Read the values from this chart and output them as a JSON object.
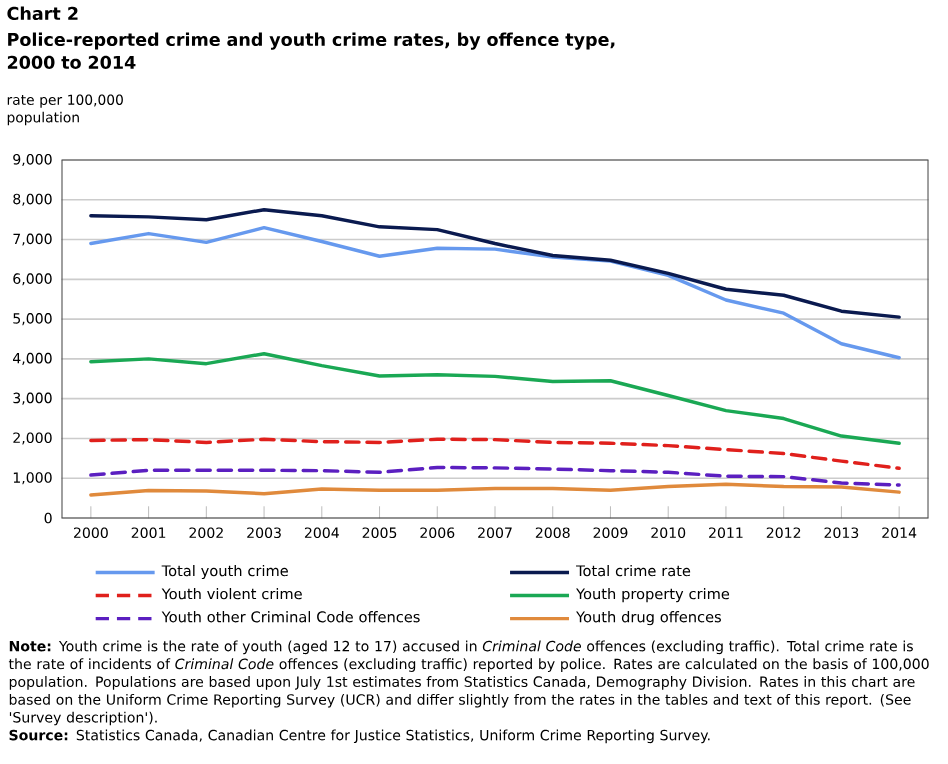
{
  "chart_data": {
    "type": "line",
    "title": "Police-reported  crime and youth crime rates, by offence type, 2000 to 2014",
    "ylabel": "rate per 100,000 population",
    "categories": [
      "2000",
      "2001",
      "2002",
      "2003",
      "2004",
      "2005",
      "2006",
      "2007",
      "2008",
      "2009",
      "2010",
      "2011",
      "2012",
      "2013",
      "2014"
    ],
    "series": [
      {
        "name": "Total youth crime",
        "color": "#6699ee",
        "line_style": "solid",
        "values": [
          6900,
          7150,
          6930,
          7300,
          6950,
          6580,
          6780,
          6760,
          6560,
          6460,
          6100,
          5480,
          5150,
          4380,
          4030
        ]
      },
      {
        "name": "Total crime rate",
        "color": "#0a1a4f",
        "line_style": "solid",
        "values": [
          7600,
          7570,
          7500,
          7750,
          7600,
          7320,
          7250,
          6900,
          6600,
          6480,
          6150,
          5750,
          5600,
          5200,
          5050
        ]
      },
      {
        "name": "Youth violent crime",
        "color": "#e0201c",
        "line_style": "dashed",
        "values": [
          1950,
          1970,
          1900,
          1980,
          1920,
          1900,
          1980,
          1970,
          1900,
          1880,
          1820,
          1720,
          1620,
          1430,
          1250
        ]
      },
      {
        "name": "Youth property crime",
        "color": "#1aa854",
        "line_style": "solid",
        "values": [
          3930,
          4000,
          3880,
          4130,
          3830,
          3570,
          3600,
          3560,
          3430,
          3450,
          3080,
          2700,
          2500,
          2060,
          1880
        ]
      },
      {
        "name": "Youth other Criminal Code offences",
        "color": "#5b1fc0",
        "line_style": "dashed",
        "values": [
          1080,
          1200,
          1200,
          1200,
          1190,
          1150,
          1270,
          1260,
          1230,
          1190,
          1150,
          1050,
          1040,
          880,
          830
        ]
      },
      {
        "name": "Youth drug offences",
        "color": "#e08a3c",
        "line_style": "solid",
        "values": [
          580,
          690,
          680,
          610,
          730,
          700,
          700,
          740,
          740,
          700,
          790,
          850,
          790,
          780,
          650
        ]
      }
    ],
    "ylim": [
      0,
      9000
    ],
    "yticks": [
      0,
      {
        "value": 1000,
        "label": "1,000"
      },
      {
        "value": 2000,
        "label": "2,000"
      },
      {
        "value": 3000,
        "label": "3,000"
      },
      {
        "value": 4000,
        "label": "4,000"
      },
      {
        "value": 5000,
        "label": "5,000"
      },
      {
        "value": 6000,
        "label": "6,000"
      },
      {
        "value": 7000,
        "label": "7,000"
      },
      {
        "value": 8000,
        "label": "8,000"
      },
      {
        "value": 9000,
        "label": "9,000"
      }
    ],
    "grid": "y",
    "legend": "bottom",
    "marker": "none",
    "annotations": [
      "Chart 2",
      "**Note:** Youth crime is the rate of youth (aged 12 to 17) accused in *Criminal Code* offences (excluding traffic). Total crime rate is the rate of incidents of *Criminal Code* offences (excluding traffic) reported by police. Rates are calculated on the basis of 100,000 population. Populations are based upon July 1st estimates from Statistics Canada, Demography Division. Rates in this chart are based on the Uniform Crime Reporting Survey (UCR) and differ slightly from the rates in the tables and text of this report. (See 'Survey description').",
      "**Source:** Statistics Canada, Canadian Centre for Justice Statistics, Uniform Crime Reporting Survey."
    ]
  }
}
